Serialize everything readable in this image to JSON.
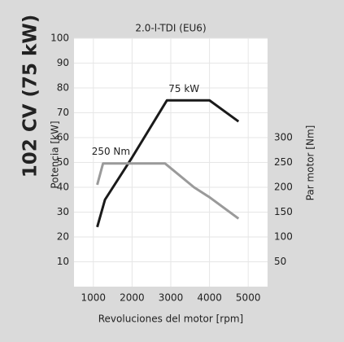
{
  "chart_data": {
    "type": "line",
    "title": "2.0-l-TDI (EU6)",
    "heading": "102 CV (75 kW)",
    "x_label": "Revoluciones del motor [rpm]",
    "y_label": "Potencia [kW]",
    "y2_label": "Par motor [Nm]",
    "series": [
      {
        "name": "75 kW",
        "color": "#1a1a1a",
        "x": [
          1100,
          1300,
          2000,
          2900,
          4000,
          4750
        ],
        "values": [
          24,
          35,
          52,
          75,
          75,
          66.5
        ]
      },
      {
        "name": "250 Nm",
        "color": "#9a9a9a",
        "axis": "y2",
        "x": [
          1100,
          1250,
          2850,
          3600,
          4000,
          4750
        ],
        "values": [
          205,
          248,
          248,
          200,
          180,
          137
        ]
      }
    ],
    "xlim": [
      500,
      5500
    ],
    "xticks": [
      1000,
      2000,
      3000,
      4000,
      5000
    ],
    "ylim": [
      0,
      100
    ],
    "yticks": [
      10,
      20,
      30,
      40,
      50,
      60,
      70,
      80,
      90,
      100
    ],
    "y2lim": [
      0,
      500
    ],
    "y2ticks": [
      50,
      100,
      150,
      200,
      250,
      300
    ],
    "grid": true
  }
}
